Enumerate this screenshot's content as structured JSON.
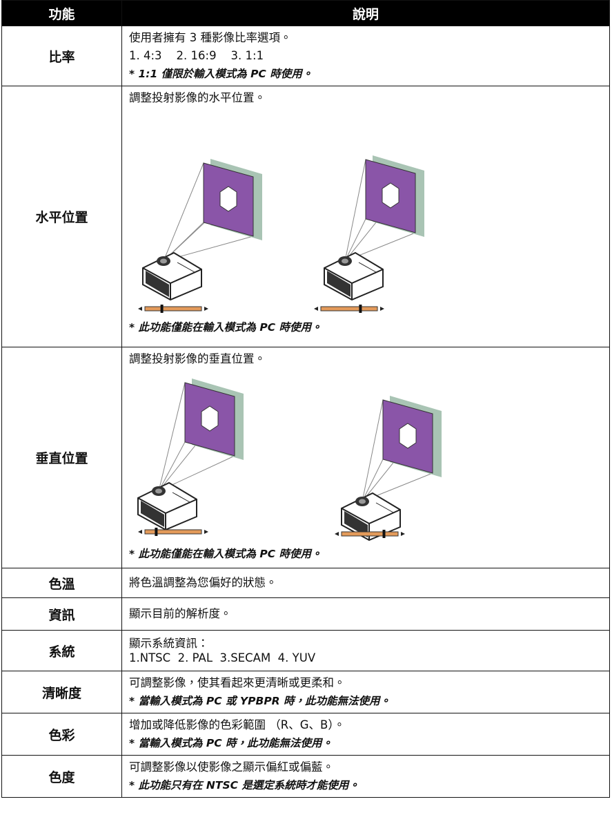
{
  "table": {
    "header": [
      "功能",
      "說明"
    ],
    "rows": [
      {
        "function": "比率",
        "description": [
          "使用者擁有 3 種影像比率選項。",
          "1. 4:3    2. 16:9    3. 1:1"
        ],
        "note": "* 1:1 僅限於輸入模式為 PC 時使用。"
      },
      {
        "function": "水平位置",
        "description": [
          "調整投射影像的水平位置。"
        ],
        "note": "* 此功能僅能在輸入模式為 PC 時使用。"
      },
      {
        "function": "垂直位置",
        "description": [
          "調整投射影像的垂直位置。"
        ],
        "note": "* 此功能僅能在輸入模式為 PC 時使用。"
      },
      {
        "function": "色溫",
        "description": [
          "將色溫調整為您偏好的狀態。"
        ]
      },
      {
        "function": "資訊",
        "description": [
          "顯示目前的解析度。"
        ]
      },
      {
        "function": "系統",
        "description": [
          "顯示系統資訊：",
          "1.NTSC  2. PAL  3.SECAM  4. YUV"
        ]
      },
      {
        "function": "清晰度",
        "description": [
          "可調整影像，使其看起來更清晰或更柔和。"
        ],
        "note": "* 當輸入模式為 PC 或 YPBPR 時，此功能無法使用。"
      },
      {
        "function": "色彩",
        "description": [
          "增加或降低影像的色彩範圍 （R、G、B）。"
        ],
        "note": "* 當輸入模式為 PC 時，此功能無法使用。"
      },
      {
        "function": "色度",
        "description": [
          "可調整影像以使影像之顯示偏紅或偏藍。"
        ],
        "note": "* 此功能只有在 NTSC 是選定系統時才能使用。"
      }
    ]
  }
}
